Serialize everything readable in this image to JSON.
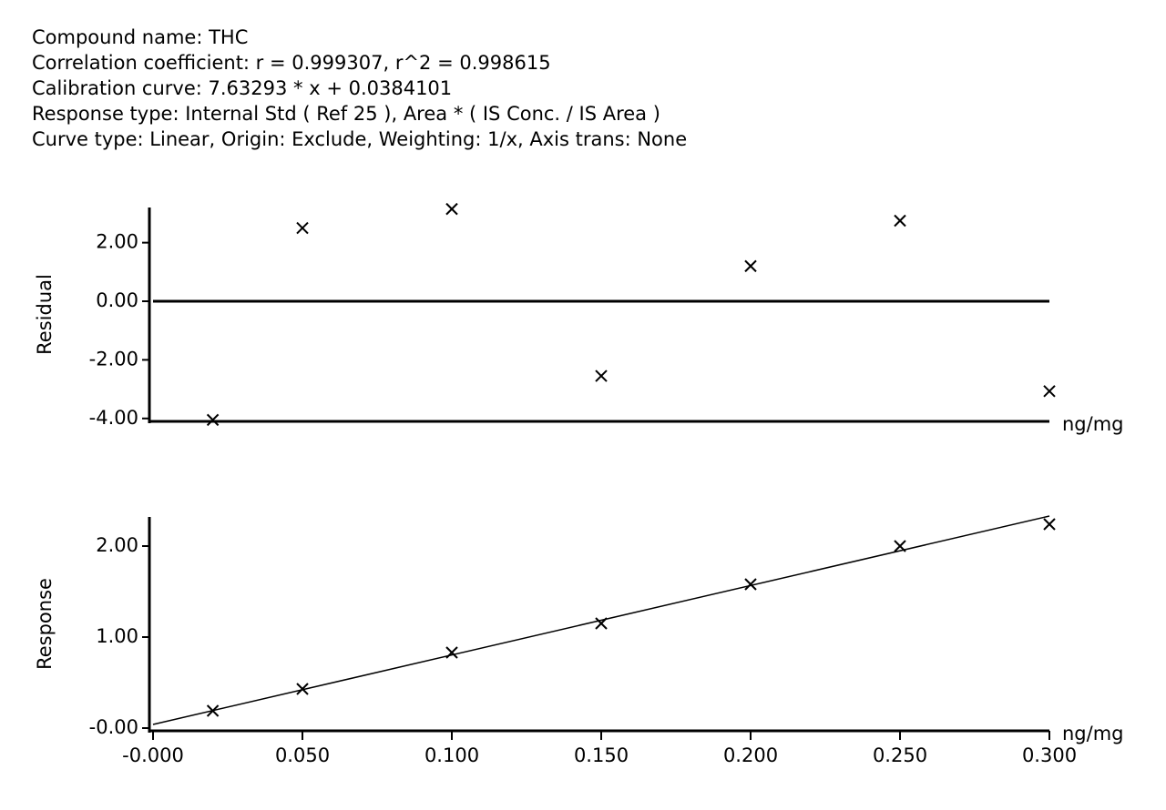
{
  "header": {
    "lines": [
      "Compound name: THC",
      "Correlation coefficient: r = 0.999307, r^2 = 0.998615",
      "Calibration curve: 7.63293 * x + 0.0384101",
      "Response type: Internal Std ( Ref 25 ), Area * ( IS Conc. / IS Area )",
      "Curve type: Linear, Origin: Exclude, Weighting: 1/x, Axis trans: None"
    ]
  },
  "chart_data": [
    {
      "type": "scatter",
      "ylabel": "Residual",
      "xlabel": "ng/mg",
      "xlim": [
        0,
        0.3
      ],
      "ylim": [
        -4.1,
        3.2
      ],
      "yticks": [
        {
          "value": 2,
          "label": "2.00"
        },
        {
          "value": 0,
          "label": "0.00"
        },
        {
          "value": -2,
          "label": "-2.00"
        },
        {
          "value": -4,
          "label": "-4.00"
        }
      ],
      "hline": 0,
      "series": [
        {
          "name": "Residual",
          "color": "#000000",
          "marker": "x",
          "x": [
            0.02,
            0.05,
            0.1,
            0.15,
            0.2,
            0.25,
            0.3
          ],
          "values": [
            -4.05,
            2.5,
            3.15,
            -2.55,
            1.2,
            2.75,
            -3.07
          ]
        }
      ]
    },
    {
      "type": "scatter",
      "ylabel": "Response",
      "xlabel": "ng/mg",
      "xlim": [
        0,
        0.3
      ],
      "ylim": [
        -0.03,
        2.32
      ],
      "xticks": [
        {
          "value": 0,
          "label": "-0.000"
        },
        {
          "value": 0.05,
          "label": "0.050"
        },
        {
          "value": 0.1,
          "label": "0.100"
        },
        {
          "value": 0.15,
          "label": "0.150"
        },
        {
          "value": 0.2,
          "label": "0.200"
        },
        {
          "value": 0.25,
          "label": "0.250"
        },
        {
          "value": 0.3,
          "label": "0.300"
        }
      ],
      "yticks": [
        {
          "value": 2,
          "label": "2.00"
        },
        {
          "value": 1,
          "label": "1.00"
        },
        {
          "value": 0,
          "label": "-0.00"
        }
      ],
      "series": [
        {
          "name": "Response",
          "color": "#000000",
          "marker": "x",
          "x": [
            0.02,
            0.05,
            0.1,
            0.15,
            0.2,
            0.25,
            0.3
          ],
          "values": [
            0.19,
            0.43,
            0.83,
            1.15,
            1.58,
            2.0,
            2.24
          ]
        },
        {
          "name": "Calibration curve",
          "color": "#000000",
          "marker": "line",
          "x": [
            0,
            0.3
          ],
          "values": [
            0.04,
            2.33
          ]
        }
      ]
    }
  ]
}
